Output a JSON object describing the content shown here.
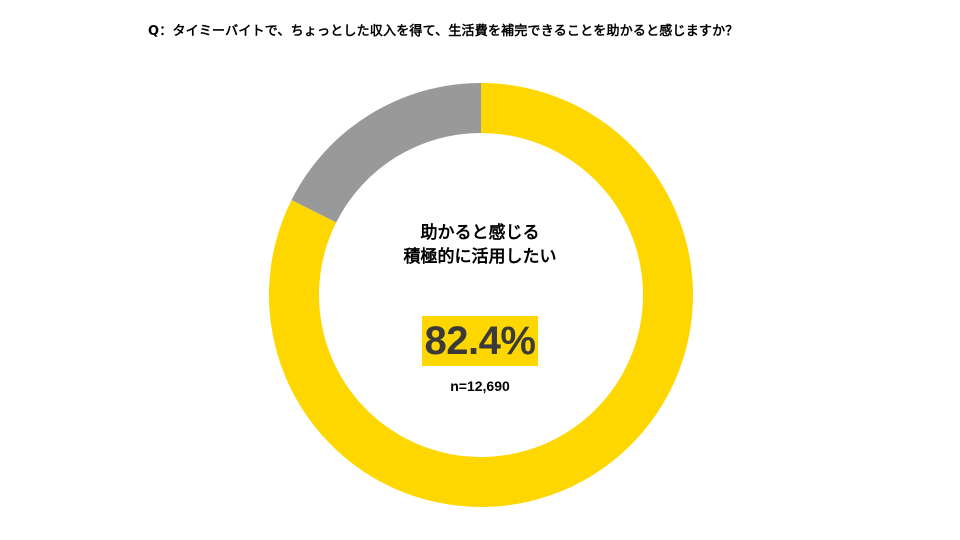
{
  "question": "Q：タイミーバイトで、ちょっとした収入を得て、生活費を補完できることを助かると感じますか？",
  "chart_data": {
    "type": "pie",
    "title": "",
    "slices": [
      {
        "label": "助かると感じる積極的に活用したい",
        "value": 82.4,
        "color": "#FFD700"
      },
      {
        "label": "",
        "value": 17.6,
        "color": "#999999"
      }
    ],
    "center_label_line1": "助かると感じる",
    "center_label_line2": "積極的に活用したい",
    "highlight_value": "82.4%",
    "sample_size": "n=12,690"
  }
}
